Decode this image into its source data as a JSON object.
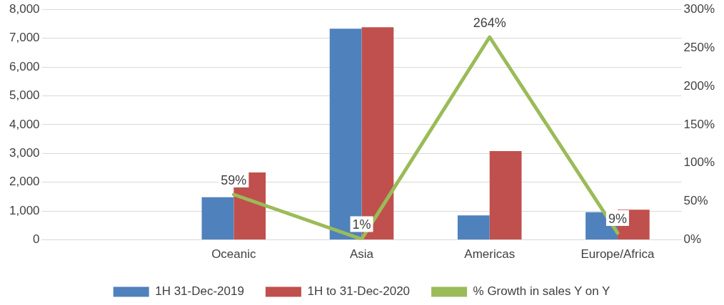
{
  "chart_data": {
    "type": "bar",
    "categories": [
      null,
      "Oceanic",
      "Asia",
      "Americas",
      "Europe/Africa"
    ],
    "series": [
      {
        "name": "1H 31-Dec-2019",
        "color": "#4f81bd",
        "values": [
          null,
          1480,
          7330,
          850,
          960
        ]
      },
      {
        "name": "1H to 31-Dec-2020",
        "color": "#c0504d",
        "values": [
          null,
          2340,
          7380,
          3080,
          1050
        ]
      },
      {
        "name": "% Growth in sales Y on Y",
        "type": "line",
        "axis": "y2",
        "color": "#9bbb59",
        "marker": "none",
        "values": [
          null,
          59,
          1,
          264,
          9
        ],
        "value_labels": [
          null,
          "59%",
          "1%",
          "264%",
          "9%"
        ]
      }
    ],
    "ylim": [
      0,
      8000
    ],
    "yticks": [
      {
        "value": 0,
        "label": "0"
      },
      {
        "value": 1000,
        "label": "1,000"
      },
      {
        "value": 2000,
        "label": "2,000"
      },
      {
        "value": 3000,
        "label": "3,000"
      },
      {
        "value": 4000,
        "label": "4,000"
      },
      {
        "value": 5000,
        "label": "5,000"
      },
      {
        "value": 6000,
        "label": "6,000"
      },
      {
        "value": 7000,
        "label": "7,000"
      },
      {
        "value": 8000,
        "label": "8,000"
      }
    ],
    "y2lim": [
      0,
      300
    ],
    "y2ticks": [
      {
        "value": 0,
        "label": "0%"
      },
      {
        "value": 50,
        "label": "50%"
      },
      {
        "value": 100,
        "label": "100%"
      },
      {
        "value": 150,
        "label": "150%"
      },
      {
        "value": 200,
        "label": "200%"
      },
      {
        "value": 250,
        "label": "250%"
      },
      {
        "value": 300,
        "label": "300%"
      }
    ],
    "grid": "y",
    "legend": "bottom"
  }
}
